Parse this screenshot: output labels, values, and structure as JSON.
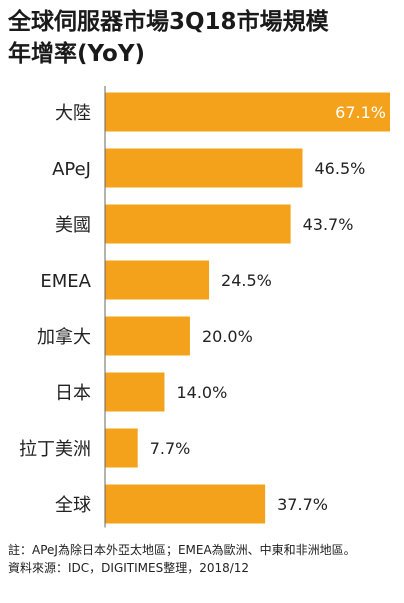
{
  "title_line1": "全球伺服器市場3Q18市場規模",
  "title_line2": "年增率(YoY)",
  "colors": {
    "bar": "#F4A21B",
    "text": "#222222",
    "axis": "#666666"
  },
  "chart_data": {
    "type": "bar",
    "orientation": "horizontal",
    "categories": [
      "大陸",
      "APeJ",
      "美國",
      "EMEA",
      "加拿大",
      "日本",
      "拉丁美洲",
      "全球"
    ],
    "values": [
      67.1,
      46.5,
      43.7,
      24.5,
      20.0,
      14.0,
      7.7,
      37.7
    ],
    "labels": [
      "67.1%",
      "46.5%",
      "43.7%",
      "24.5%",
      "20.0%",
      "14.0%",
      "7.7%",
      "37.7%"
    ],
    "value_unit": "%",
    "xlim": [
      0,
      67.1
    ]
  },
  "note_label": "註：",
  "note_text": "APeJ為除日本外亞太地區；EMEA為歐洲、中東和非洲地區。",
  "source": "資料來源：IDC，DIGITIMES整理，2018/12"
}
